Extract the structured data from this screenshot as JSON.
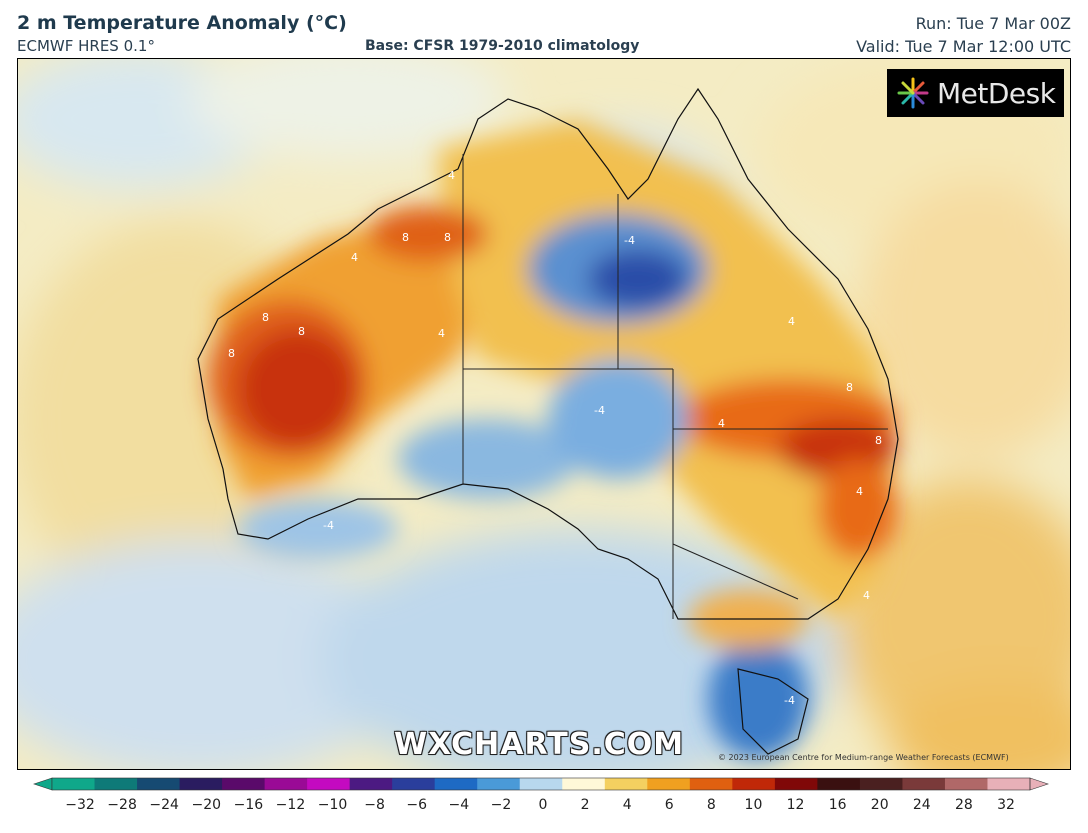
{
  "header": {
    "title": "2 m Temperature Anomaly (°C)",
    "model": "ECMWF HRES 0.1°",
    "base": "Base: CFSR 1979-2010 climatology",
    "run": "Run: Tue 7 Mar 00Z",
    "valid": "Valid: Tue 7 Mar 12:00 UTC"
  },
  "map": {
    "region": "Australia",
    "watermark": "WXCHARTS.COM",
    "copyright": "© 2023 European Centre for Medium-range Weather Forecasts (ECMWF)",
    "contour_labels": [
      "4",
      "8",
      "-4"
    ],
    "anomaly_regions": [
      {
        "area": "Western Australia interior",
        "level": "warm",
        "contour": 8
      },
      {
        "area": "Kimberley / northern WA",
        "level": "warm",
        "contour": 8
      },
      {
        "area": "Northern Territory / Gulf Country",
        "level": "cool",
        "contour": -4
      },
      {
        "area": "Queensland / New South Wales",
        "level": "warm",
        "contour": 8
      },
      {
        "area": "South Australia",
        "level": "cool",
        "contour": -4
      },
      {
        "area": "Tasmania",
        "level": "cool",
        "contour": -4
      }
    ]
  },
  "logo": {
    "text": "MetDesk"
  },
  "colorbar": {
    "ticks": [
      "−32",
      "−28",
      "−24",
      "−20",
      "−16",
      "−12",
      "−10",
      "−8",
      "−6",
      "−4",
      "−2",
      "0",
      "2",
      "4",
      "6",
      "8",
      "10",
      "12",
      "16",
      "20",
      "24",
      "28",
      "32"
    ],
    "colors": [
      "#0fa88a",
      "#0e7a78",
      "#164a72",
      "#2a1c60",
      "#5a0a6a",
      "#9a0a96",
      "#c40ac0",
      "#4c1a82",
      "#2a3e9c",
      "#1e6ac4",
      "#4a9ad8",
      "#b8d8ee",
      "#fff8d8",
      "#f4d060",
      "#f0a020",
      "#e06010",
      "#c02808",
      "#800808",
      "#3a1010",
      "#4a2020",
      "#7a3a3a",
      "#b06868",
      "#e8b0b8"
    ]
  }
}
